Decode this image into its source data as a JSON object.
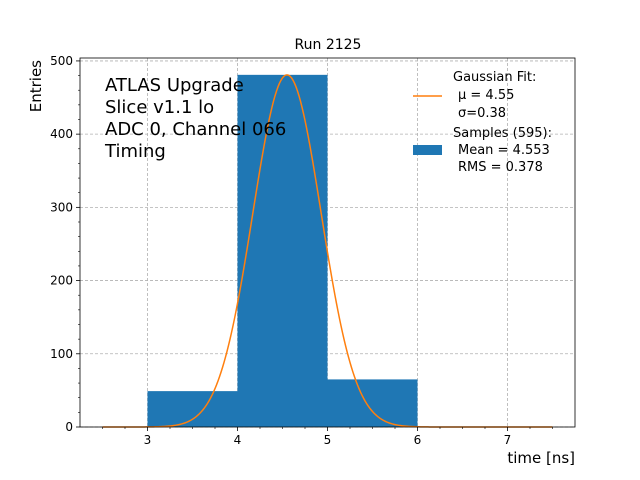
{
  "chart_data": {
    "type": "bar",
    "title": "Run 2125",
    "xlabel": "time [ns]",
    "ylabel": "Entries",
    "xlim": [
      2.25,
      7.75
    ],
    "ylim": [
      0,
      504
    ],
    "grid": true,
    "xticks": [
      3,
      4,
      5,
      6,
      7
    ],
    "yticks": [
      0,
      100,
      200,
      300,
      400,
      500
    ],
    "annotation_lines": [
      "ATLAS Upgrade",
      "Slice v1.1 lo",
      "ADC 0, Channel 066",
      "Timing"
    ],
    "histogram": {
      "bin_edges": [
        3,
        4,
        5,
        6
      ],
      "counts": [
        49,
        481,
        65
      ],
      "color": "#1f77b4"
    },
    "fit": {
      "type": "gaussian",
      "mu": 4.55,
      "sigma": 0.38,
      "amplitude": 481,
      "x_range": [
        2.5,
        7.5
      ],
      "color": "#ff7f0e"
    },
    "legend": {
      "placement": "top-right",
      "fit_entry": [
        "Gaussian Fit:",
        "μ = 4.55",
        "σ=0.38"
      ],
      "hist_entry": [
        "Samples (595):",
        "Mean = 4.553",
        "RMS = 0.378"
      ]
    }
  }
}
